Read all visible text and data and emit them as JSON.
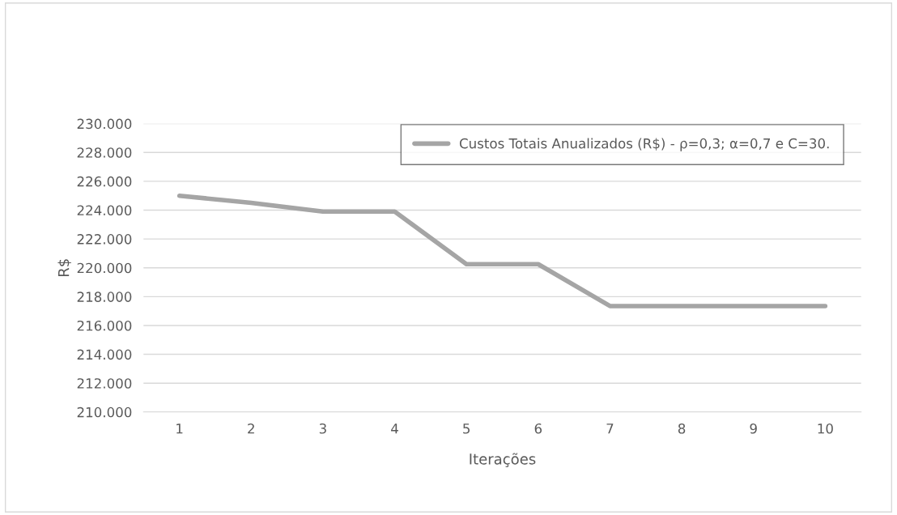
{
  "chart_data": {
    "type": "line",
    "xlabel": "Iterações",
    "ylabel": "R$",
    "categories": [
      "1",
      "2",
      "3",
      "4",
      "5",
      "6",
      "7",
      "8",
      "9",
      "10"
    ],
    "series": [
      {
        "name": "Custos Totais Anualizados (R$) - ρ=0,3; α=0,7 e C=30.",
        "color": "#a5a5a5",
        "values": [
          225000,
          224500,
          223900,
          223900,
          220250,
          220250,
          217350,
          217350,
          217350,
          217350
        ]
      }
    ],
    "ylim": [
      210000,
      230000
    ],
    "yticks": [
      {
        "value": 210000,
        "label": "210.000"
      },
      {
        "value": 212000,
        "label": "212.000"
      },
      {
        "value": 214000,
        "label": "214.000"
      },
      {
        "value": 216000,
        "label": "216.000"
      },
      {
        "value": 218000,
        "label": "218.000"
      },
      {
        "value": 220000,
        "label": "220.000"
      },
      {
        "value": 222000,
        "label": "222.000"
      },
      {
        "value": 224000,
        "label": "224.000"
      },
      {
        "value": 226000,
        "label": "226.000"
      },
      {
        "value": 228000,
        "label": "228.000"
      },
      {
        "value": 230000,
        "label": "230.000"
      }
    ],
    "grid": "y",
    "legend": "top right",
    "marker": "none",
    "line_style": "solid"
  }
}
